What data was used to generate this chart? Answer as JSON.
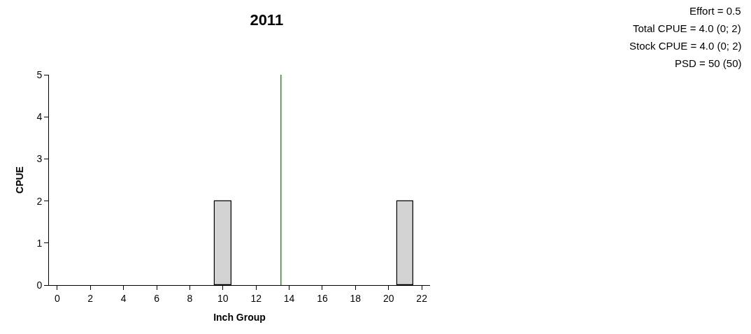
{
  "chart_data": {
    "type": "bar",
    "title": "2011",
    "xlabel": "Inch Group",
    "ylabel": "CPUE",
    "x": [
      10,
      21
    ],
    "values": [
      2,
      2
    ],
    "color": "#d3d3d3",
    "xlim": [
      -0.5,
      22.5
    ],
    "xticks": [
      0,
      2,
      4,
      6,
      8,
      10,
      12,
      14,
      16,
      18,
      20,
      22
    ],
    "ylim": [
      0,
      5
    ],
    "yticks": [
      0,
      1,
      2,
      3,
      4,
      5
    ],
    "ref_lines": [
      {
        "axis": "x",
        "value": 13.5,
        "color": "#1a9a1a"
      }
    ],
    "annotations": [
      "Effort = 0.5",
      "Total CPUE = 4.0 (0; 2)",
      "Stock CPUE = 4.0 (0; 2)",
      "PSD = 50 (50)"
    ]
  }
}
